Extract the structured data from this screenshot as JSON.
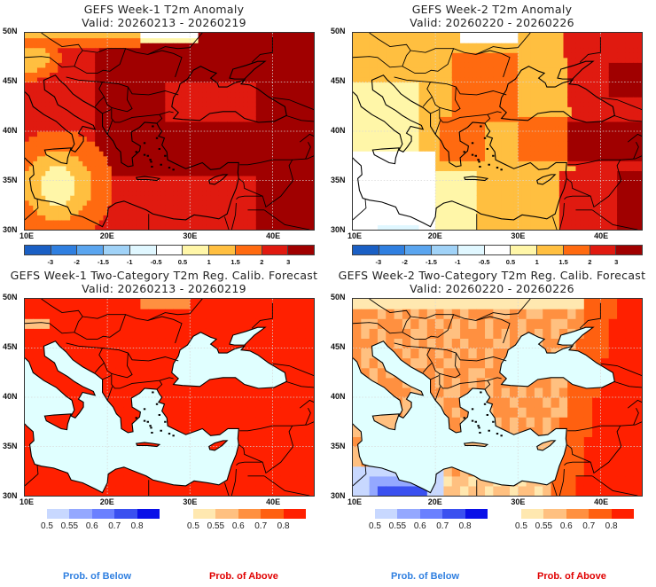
{
  "panels": [
    {
      "title": "GEFS Week-1 T2m Anomaly",
      "valid": "Valid: 20260213 - 20260219",
      "kind": "anom1"
    },
    {
      "title": "GEFS Week-2 T2m Anomaly",
      "valid": "Valid: 20260220 - 20260226",
      "kind": "anom2"
    },
    {
      "title": "GEFS Week-1 Two-Category T2m Reg. Calib. Forecast",
      "valid": "Valid: 20260213 - 20260219",
      "kind": "prob1"
    },
    {
      "title": "GEFS Week-2 Two-Category T2m Reg. Calib. Forecast",
      "valid": "Valid: 20260220 - 20260226",
      "kind": "prob2"
    }
  ],
  "axes": {
    "lat_labels": [
      "50N",
      "45N",
      "40N",
      "35N",
      "30N"
    ],
    "lon_labels": [
      "10E",
      "20E",
      "30E",
      "40E"
    ]
  },
  "anomaly_colorbar": {
    "colors": [
      "#1a5fc4",
      "#2f7fe0",
      "#5aa5ef",
      "#a0d2f7",
      "#e0f7ff",
      "#ffffff",
      "#fff6a8",
      "#ffbf40",
      "#ff6a10",
      "#e01a10",
      "#a00000"
    ],
    "labels": [
      "-3",
      "-2",
      "-1.5",
      "-1",
      "-0.5",
      "0.5",
      "1",
      "1.5",
      "2",
      "3"
    ]
  },
  "prob_below_colorbar": {
    "colors": [
      "#c8d8ff",
      "#94a8ff",
      "#6a80ff",
      "#3a50f0",
      "#0a10e8"
    ],
    "labels": [
      "0.5",
      "0.55",
      "0.6",
      "0.7",
      "0.8"
    ]
  },
  "prob_above_colorbar": {
    "colors": [
      "#ffe8b0",
      "#ffc080",
      "#ff9040",
      "#ff6010",
      "#ff2000"
    ],
    "labels": [
      "0.5",
      "0.55",
      "0.6",
      "0.7",
      "0.8"
    ]
  },
  "footer": {
    "below": "Prob. of Below",
    "above": "Prob. of Above",
    "below_color": "#2f7fe0",
    "above_color": "#e00000"
  },
  "colors": {
    "sea": "#e0ffff"
  }
}
